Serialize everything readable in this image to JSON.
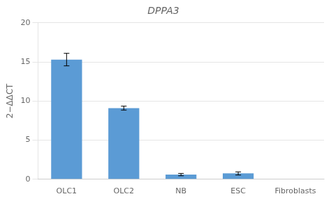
{
  "chart_data": {
    "type": "bar",
    "title": "DPPA3",
    "categories": [
      "OLC1",
      "OLC2",
      "NB",
      "ESC",
      "Fibroblasts"
    ],
    "values": [
      15.3,
      9.1,
      0.6,
      0.75,
      0.0
    ],
    "errors": [
      0.8,
      0.25,
      0.15,
      0.2,
      0.0
    ],
    "color": "#5B9BD5",
    "ylabel": "2−ΔΔCT",
    "ylim": [
      0,
      20
    ],
    "yticks": [
      0,
      5,
      10,
      15,
      20
    ],
    "grid": true
  }
}
